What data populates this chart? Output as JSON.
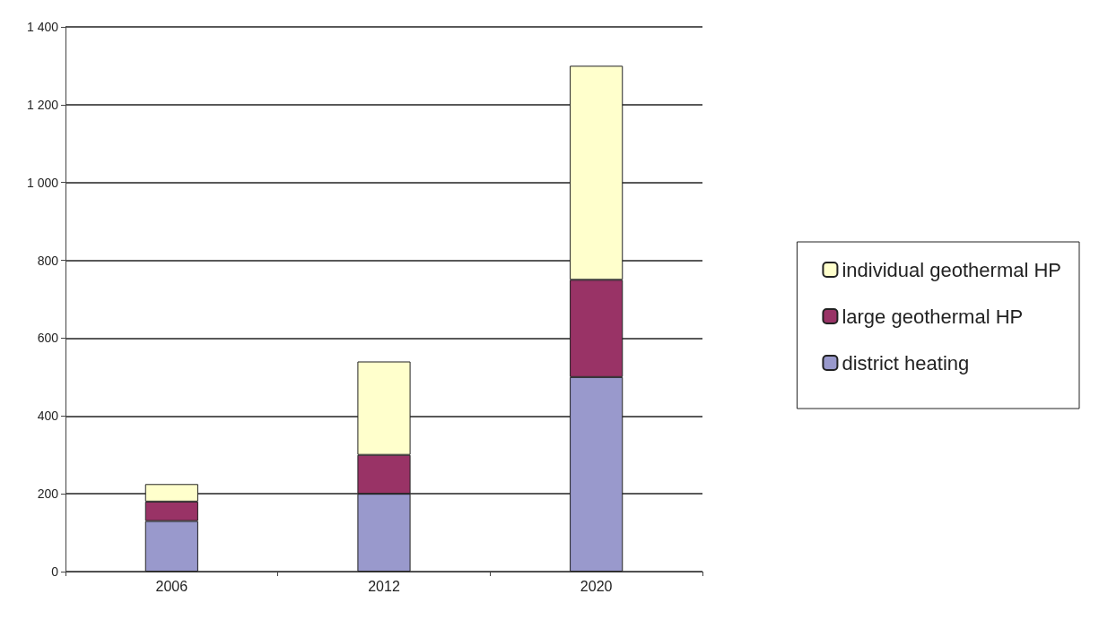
{
  "chart_data": {
    "type": "bar",
    "stacked": true,
    "categories": [
      "2006",
      "2012",
      "2020"
    ],
    "series": [
      {
        "name": "district heating",
        "color": "#9999cc",
        "values": [
          130,
          200,
          500
        ]
      },
      {
        "name": "large geothermal HP",
        "color": "#993366",
        "values": [
          50,
          100,
          250
        ]
      },
      {
        "name": "individual geothermal HP",
        "color": "#ffffcc",
        "values": [
          45,
          240,
          550
        ]
      }
    ],
    "ylim": [
      0,
      1400
    ],
    "yticks": [
      {
        "value": 0,
        "label": "0"
      },
      {
        "value": 200,
        "label": "200"
      },
      {
        "value": 400,
        "label": "400"
      },
      {
        "value": 600,
        "label": "600"
      },
      {
        "value": 800,
        "label": "800"
      },
      {
        "value": 1000,
        "label": "1 000"
      },
      {
        "value": 1200,
        "label": "1 200"
      },
      {
        "value": 1400,
        "label": "1 400"
      }
    ],
    "grid": "y",
    "legend": "right"
  }
}
